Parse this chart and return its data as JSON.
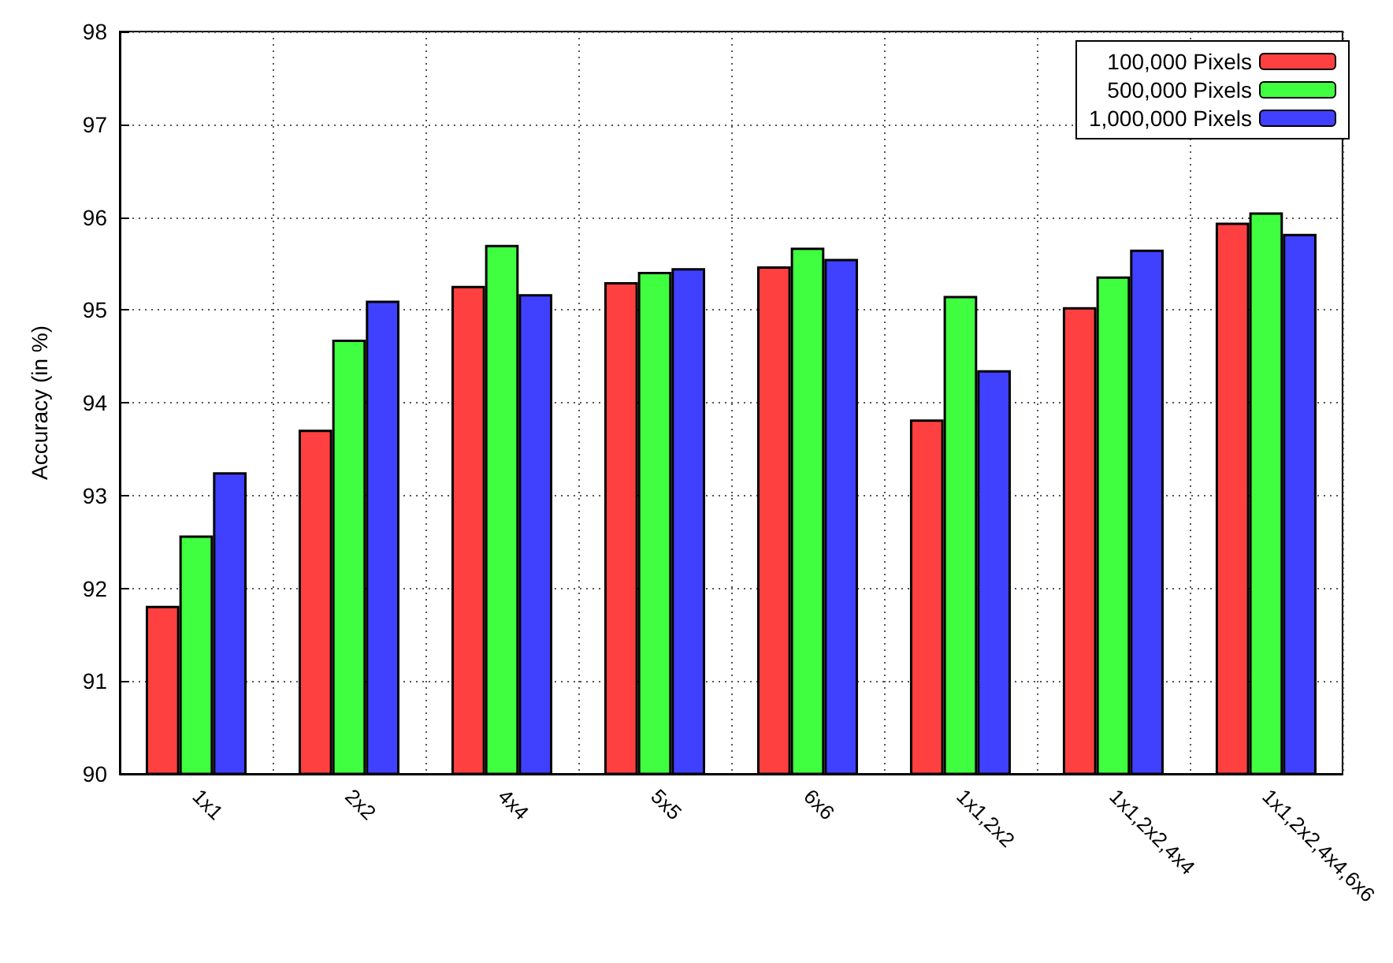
{
  "chart_data": {
    "type": "bar",
    "ylabel": "Accuracy (in %)",
    "categories": [
      "1x1",
      "2x2",
      "4x4",
      "5x5",
      "6x6",
      "1x1,2x2",
      "1x1,2x2,4x4",
      "1x1,2x2,4x4,6x6"
    ],
    "series": [
      {
        "name": "100,000 Pixels",
        "color": "#ff4040",
        "values": [
          91.81,
          93.71,
          95.26,
          95.3,
          95.47,
          93.82,
          95.03,
          95.94
        ]
      },
      {
        "name": "500,000 Pixels",
        "color": "#40ff40",
        "values": [
          92.57,
          94.68,
          95.7,
          95.41,
          95.67,
          95.15,
          95.36,
          96.05
        ]
      },
      {
        "name": "1,000,000 Pixels",
        "color": "#4040ff",
        "values": [
          93.25,
          95.1,
          95.17,
          95.45,
          95.55,
          94.35,
          95.65,
          95.82
        ]
      }
    ],
    "ylim": [
      90,
      98
    ],
    "yticks": [
      90,
      91,
      92,
      93,
      94,
      95,
      96,
      97,
      98
    ],
    "grid": true,
    "legend": "top right"
  }
}
